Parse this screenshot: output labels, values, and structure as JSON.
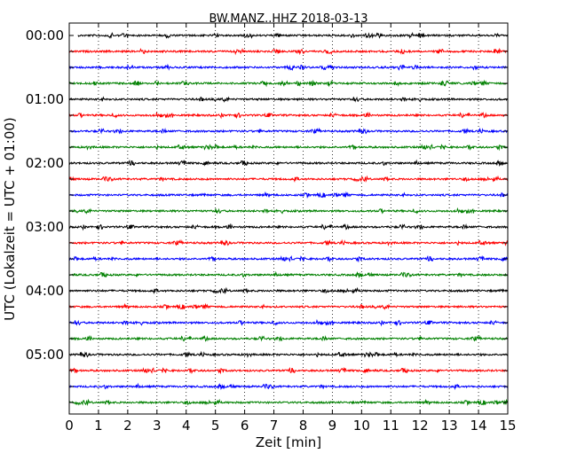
{
  "chart_data": {
    "type": "line",
    "title": "BW.MANZ..HHZ 2018-03-13",
    "xlabel": "Zeit  [min]",
    "ylabel": "UTC (Lokalzeit = UTC + 01:00)",
    "xlim": [
      0,
      15
    ],
    "x_ticks": [
      "0",
      "1",
      "2",
      "3",
      "4",
      "5",
      "6",
      "7",
      "8",
      "9",
      "10",
      "11",
      "12",
      "13",
      "14",
      "15"
    ],
    "y_tick_labels": [
      "00:00",
      "01:00",
      "02:00",
      "03:00",
      "04:00",
      "05:00"
    ],
    "grid": "vertical dotted",
    "trace_colors": [
      "#000000",
      "#ff0000",
      "#0000ff",
      "#008000"
    ],
    "traces": [
      {
        "start": "00:00",
        "x_range": [
          0.3,
          15
        ]
      },
      {
        "start": "00:15",
        "x_range": [
          0,
          15
        ]
      },
      {
        "start": "00:30",
        "x_range": [
          0,
          15
        ]
      },
      {
        "start": "00:45",
        "x_range": [
          0,
          15
        ]
      },
      {
        "start": "01:00",
        "x_range": [
          0,
          15
        ]
      },
      {
        "start": "01:15",
        "x_range": [
          0,
          15
        ]
      },
      {
        "start": "01:30",
        "x_range": [
          0,
          15
        ]
      },
      {
        "start": "01:45",
        "x_range": [
          0,
          15
        ]
      },
      {
        "start": "02:00",
        "x_range": [
          0,
          15
        ]
      },
      {
        "start": "02:15",
        "x_range": [
          0,
          15
        ]
      },
      {
        "start": "02:30",
        "x_range": [
          0,
          15
        ]
      },
      {
        "start": "02:45",
        "x_range": [
          0,
          15
        ]
      },
      {
        "start": "03:00",
        "x_range": [
          0,
          15
        ]
      },
      {
        "start": "03:15",
        "x_range": [
          0,
          15
        ]
      },
      {
        "start": "03:30",
        "x_range": [
          0,
          15
        ]
      },
      {
        "start": "03:45",
        "x_range": [
          0,
          15
        ]
      },
      {
        "start": "04:00",
        "x_range": [
          0,
          15
        ]
      },
      {
        "start": "04:15",
        "x_range": [
          0,
          15
        ]
      },
      {
        "start": "04:30",
        "x_range": [
          0,
          15
        ]
      },
      {
        "start": "04:45",
        "x_range": [
          0,
          15
        ]
      },
      {
        "start": "05:00",
        "x_range": [
          0,
          15
        ]
      },
      {
        "start": "05:15",
        "x_range": [
          0,
          15
        ]
      },
      {
        "start": "05:30",
        "x_range": [
          0,
          15
        ]
      },
      {
        "start": "05:45",
        "x_range": [
          0,
          15
        ]
      }
    ]
  }
}
